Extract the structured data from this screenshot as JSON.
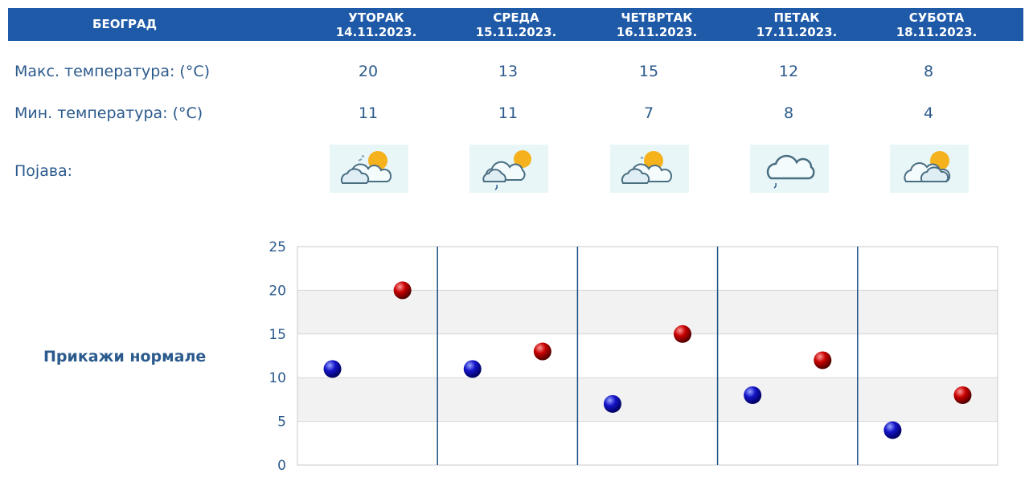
{
  "header": {
    "city": "БЕОГРАД",
    "days": [
      {
        "name": "УТОРАК",
        "date": "14.11.2023."
      },
      {
        "name": "СРЕДА",
        "date": "15.11.2023."
      },
      {
        "name": "ЧЕТВРТАК",
        "date": "16.11.2023."
      },
      {
        "name": "ПЕТАК",
        "date": "17.11.2023."
      },
      {
        "name": "СУБОТА",
        "date": "18.11.2023."
      }
    ]
  },
  "rows": {
    "max_label": "Макс. температура: (°C)",
    "min_label": "Мин. температура: (°C)",
    "phenomenon_label": "Појава:",
    "max": [
      20,
      13,
      15,
      12,
      8
    ],
    "min": [
      11,
      11,
      7,
      8,
      4
    ],
    "icons": [
      "sun-behind-clouds-icon",
      "sun-clouds-rain-icon",
      "sun-behind-clouds-icon",
      "cloud-rain-icon",
      "sun-behind-clouds-icon"
    ]
  },
  "normals_link": "Прикажи нормале",
  "chart_data": {
    "type": "scatter",
    "categories": [
      "14.11.2023.",
      "15.11.2023.",
      "16.11.2023.",
      "17.11.2023.",
      "18.11.2023."
    ],
    "series": [
      {
        "values": [
          11,
          11,
          7,
          8,
          4
        ],
        "color": "#1414b4"
      },
      {
        "values": [
          20,
          13,
          15,
          12,
          8
        ],
        "color": "#c00000"
      }
    ],
    "ylim": [
      0,
      25
    ],
    "yticks": [
      "0",
      "5",
      "10",
      "15",
      "20",
      "25"
    ],
    "grid": true
  }
}
